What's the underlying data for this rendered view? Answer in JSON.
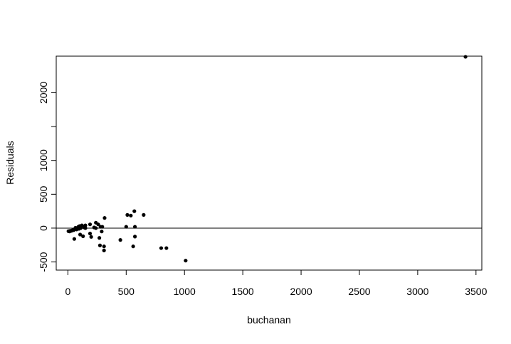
{
  "chart_data": {
    "type": "scatter",
    "title": "",
    "xlabel": "buchanan",
    "ylabel": "Residuals",
    "xlim": [
      -100,
      3550
    ],
    "ylim": [
      -620,
      2540
    ],
    "xticks": [
      0,
      500,
      1000,
      1500,
      2000,
      2500,
      3000,
      3500
    ],
    "xtick_labels": [
      "0",
      "500",
      "1000",
      "1500",
      "2000",
      "2500",
      "3000",
      "3500"
    ],
    "yticks": [
      -500,
      0,
      500,
      1000,
      1500,
      2000
    ],
    "ytick_labels": [
      "-500",
      "0",
      "500",
      "1000",
      "",
      "2000"
    ],
    "hline": 0,
    "grid": false,
    "legend": "none",
    "marker_color": "#000000",
    "points": [
      {
        "x": 3410,
        "y": 2530
      },
      {
        "x": 1010,
        "y": -480
      },
      {
        "x": 800,
        "y": -295
      },
      {
        "x": 845,
        "y": -295
      },
      {
        "x": 650,
        "y": 195
      },
      {
        "x": 570,
        "y": 250
      },
      {
        "x": 510,
        "y": 195
      },
      {
        "x": 540,
        "y": 185
      },
      {
        "x": 500,
        "y": 20
      },
      {
        "x": 575,
        "y": 20
      },
      {
        "x": 575,
        "y": -125
      },
      {
        "x": 560,
        "y": -270
      },
      {
        "x": 450,
        "y": -175
      },
      {
        "x": 315,
        "y": 150
      },
      {
        "x": 310,
        "y": -270
      },
      {
        "x": 310,
        "y": -330
      },
      {
        "x": 275,
        "y": -255
      },
      {
        "x": 270,
        "y": -145
      },
      {
        "x": 290,
        "y": -50
      },
      {
        "x": 280,
        "y": 20
      },
      {
        "x": 295,
        "y": 20
      },
      {
        "x": 260,
        "y": 55
      },
      {
        "x": 240,
        "y": 80
      },
      {
        "x": 240,
        "y": 0
      },
      {
        "x": 225,
        "y": 10
      },
      {
        "x": 190,
        "y": 55
      },
      {
        "x": 190,
        "y": -80
      },
      {
        "x": 200,
        "y": -130
      },
      {
        "x": 150,
        "y": 40
      },
      {
        "x": 150,
        "y": 0
      },
      {
        "x": 130,
        "y": -120
      },
      {
        "x": 120,
        "y": 40
      },
      {
        "x": 110,
        "y": 0
      },
      {
        "x": 105,
        "y": -95
      },
      {
        "x": 100,
        "y": 30
      },
      {
        "x": 90,
        "y": 20
      },
      {
        "x": 80,
        "y": 0
      },
      {
        "x": 75,
        "y": -20
      },
      {
        "x": 60,
        "y": -15
      },
      {
        "x": 50,
        "y": -30
      },
      {
        "x": 55,
        "y": -160
      },
      {
        "x": 40,
        "y": -30
      },
      {
        "x": 30,
        "y": -40
      },
      {
        "x": 20,
        "y": -40
      },
      {
        "x": 15,
        "y": -50
      },
      {
        "x": 5,
        "y": -45
      },
      {
        "x": 95,
        "y": -10
      },
      {
        "x": 65,
        "y": 5
      },
      {
        "x": 140,
        "y": 10
      }
    ]
  }
}
